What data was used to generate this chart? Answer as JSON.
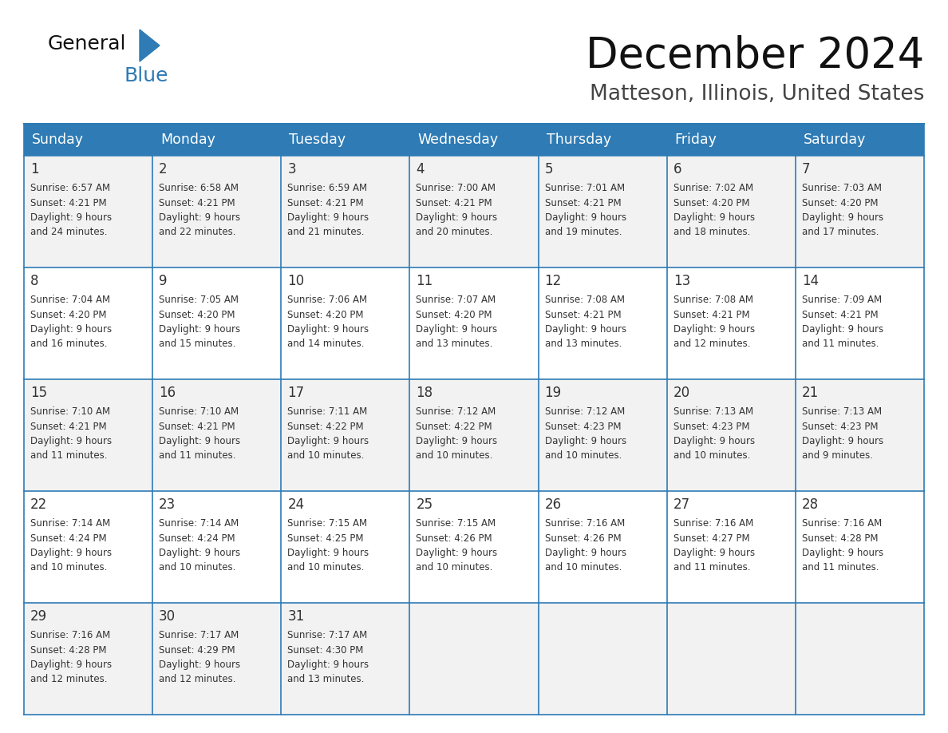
{
  "title": "December 2024",
  "subtitle": "Matteson, Illinois, United States",
  "header_color": "#2E7BB5",
  "header_text_color": "#FFFFFF",
  "day_names": [
    "Sunday",
    "Monday",
    "Tuesday",
    "Wednesday",
    "Thursday",
    "Friday",
    "Saturday"
  ],
  "bg_color": "#FFFFFF",
  "row_bg": [
    "#F2F2F2",
    "#FFFFFF"
  ],
  "border_color": "#2E7BB5",
  "date_color": "#333333",
  "text_color": "#333333",
  "logo_black": "#111111",
  "logo_blue": "#2E7BB5",
  "days": [
    {
      "day": 1,
      "col": 0,
      "row": 0,
      "sunrise": "6:57 AM",
      "sunset": "4:21 PM",
      "daylight": "9 hours and 24 minutes."
    },
    {
      "day": 2,
      "col": 1,
      "row": 0,
      "sunrise": "6:58 AM",
      "sunset": "4:21 PM",
      "daylight": "9 hours and 22 minutes."
    },
    {
      "day": 3,
      "col": 2,
      "row": 0,
      "sunrise": "6:59 AM",
      "sunset": "4:21 PM",
      "daylight": "9 hours and 21 minutes."
    },
    {
      "day": 4,
      "col": 3,
      "row": 0,
      "sunrise": "7:00 AM",
      "sunset": "4:21 PM",
      "daylight": "9 hours and 20 minutes."
    },
    {
      "day": 5,
      "col": 4,
      "row": 0,
      "sunrise": "7:01 AM",
      "sunset": "4:21 PM",
      "daylight": "9 hours and 19 minutes."
    },
    {
      "day": 6,
      "col": 5,
      "row": 0,
      "sunrise": "7:02 AM",
      "sunset": "4:20 PM",
      "daylight": "9 hours and 18 minutes."
    },
    {
      "day": 7,
      "col": 6,
      "row": 0,
      "sunrise": "7:03 AM",
      "sunset": "4:20 PM",
      "daylight": "9 hours and 17 minutes."
    },
    {
      "day": 8,
      "col": 0,
      "row": 1,
      "sunrise": "7:04 AM",
      "sunset": "4:20 PM",
      "daylight": "9 hours and 16 minutes."
    },
    {
      "day": 9,
      "col": 1,
      "row": 1,
      "sunrise": "7:05 AM",
      "sunset": "4:20 PM",
      "daylight": "9 hours and 15 minutes."
    },
    {
      "day": 10,
      "col": 2,
      "row": 1,
      "sunrise": "7:06 AM",
      "sunset": "4:20 PM",
      "daylight": "9 hours and 14 minutes."
    },
    {
      "day": 11,
      "col": 3,
      "row": 1,
      "sunrise": "7:07 AM",
      "sunset": "4:20 PM",
      "daylight": "9 hours and 13 minutes."
    },
    {
      "day": 12,
      "col": 4,
      "row": 1,
      "sunrise": "7:08 AM",
      "sunset": "4:21 PM",
      "daylight": "9 hours and 13 minutes."
    },
    {
      "day": 13,
      "col": 5,
      "row": 1,
      "sunrise": "7:08 AM",
      "sunset": "4:21 PM",
      "daylight": "9 hours and 12 minutes."
    },
    {
      "day": 14,
      "col": 6,
      "row": 1,
      "sunrise": "7:09 AM",
      "sunset": "4:21 PM",
      "daylight": "9 hours and 11 minutes."
    },
    {
      "day": 15,
      "col": 0,
      "row": 2,
      "sunrise": "7:10 AM",
      "sunset": "4:21 PM",
      "daylight": "9 hours and 11 minutes."
    },
    {
      "day": 16,
      "col": 1,
      "row": 2,
      "sunrise": "7:10 AM",
      "sunset": "4:21 PM",
      "daylight": "9 hours and 11 minutes."
    },
    {
      "day": 17,
      "col": 2,
      "row": 2,
      "sunrise": "7:11 AM",
      "sunset": "4:22 PM",
      "daylight": "9 hours and 10 minutes."
    },
    {
      "day": 18,
      "col": 3,
      "row": 2,
      "sunrise": "7:12 AM",
      "sunset": "4:22 PM",
      "daylight": "9 hours and 10 minutes."
    },
    {
      "day": 19,
      "col": 4,
      "row": 2,
      "sunrise": "7:12 AM",
      "sunset": "4:23 PM",
      "daylight": "9 hours and 10 minutes."
    },
    {
      "day": 20,
      "col": 5,
      "row": 2,
      "sunrise": "7:13 AM",
      "sunset": "4:23 PM",
      "daylight": "9 hours and 10 minutes."
    },
    {
      "day": 21,
      "col": 6,
      "row": 2,
      "sunrise": "7:13 AM",
      "sunset": "4:23 PM",
      "daylight": "9 hours and 9 minutes."
    },
    {
      "day": 22,
      "col": 0,
      "row": 3,
      "sunrise": "7:14 AM",
      "sunset": "4:24 PM",
      "daylight": "9 hours and 10 minutes."
    },
    {
      "day": 23,
      "col": 1,
      "row": 3,
      "sunrise": "7:14 AM",
      "sunset": "4:24 PM",
      "daylight": "9 hours and 10 minutes."
    },
    {
      "day": 24,
      "col": 2,
      "row": 3,
      "sunrise": "7:15 AM",
      "sunset": "4:25 PM",
      "daylight": "9 hours and 10 minutes."
    },
    {
      "day": 25,
      "col": 3,
      "row": 3,
      "sunrise": "7:15 AM",
      "sunset": "4:26 PM",
      "daylight": "9 hours and 10 minutes."
    },
    {
      "day": 26,
      "col": 4,
      "row": 3,
      "sunrise": "7:16 AM",
      "sunset": "4:26 PM",
      "daylight": "9 hours and 10 minutes."
    },
    {
      "day": 27,
      "col": 5,
      "row": 3,
      "sunrise": "7:16 AM",
      "sunset": "4:27 PM",
      "daylight": "9 hours and 11 minutes."
    },
    {
      "day": 28,
      "col": 6,
      "row": 3,
      "sunrise": "7:16 AM",
      "sunset": "4:28 PM",
      "daylight": "9 hours and 11 minutes."
    },
    {
      "day": 29,
      "col": 0,
      "row": 4,
      "sunrise": "7:16 AM",
      "sunset": "4:28 PM",
      "daylight": "9 hours and 12 minutes."
    },
    {
      "day": 30,
      "col": 1,
      "row": 4,
      "sunrise": "7:17 AM",
      "sunset": "4:29 PM",
      "daylight": "9 hours and 12 minutes."
    },
    {
      "day": 31,
      "col": 2,
      "row": 4,
      "sunrise": "7:17 AM",
      "sunset": "4:30 PM",
      "daylight": "9 hours and 13 minutes."
    }
  ]
}
